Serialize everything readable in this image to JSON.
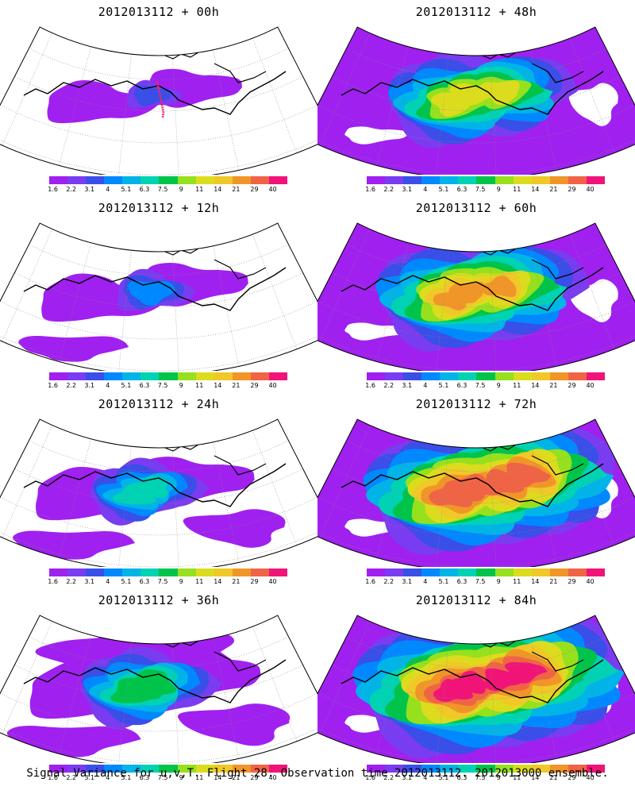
{
  "colorbar": {
    "ticks": [
      "1.6",
      "2.2",
      "3.1",
      "4",
      "5.1",
      "6.3",
      "7.5",
      "9",
      "11",
      "14",
      "21",
      "29",
      "40"
    ],
    "colors": [
      "#a020f0",
      "#7a3cf0",
      "#3a4ee8",
      "#0088ff",
      "#00b4e8",
      "#00d2b4",
      "#00c44a",
      "#96e01e",
      "#dcdc1e",
      "#f0c828",
      "#f09628",
      "#f06446",
      "#f01478"
    ]
  },
  "panels": [
    {
      "title": "2012013112 + 00h",
      "intensity": 0
    },
    {
      "title": "2012013112 + 48h",
      "intensity": 4
    },
    {
      "title": "2012013112 + 12h",
      "intensity": 1
    },
    {
      "title": "2012013112 + 60h",
      "intensity": 5
    },
    {
      "title": "2012013112 + 24h",
      "intensity": 2
    },
    {
      "title": "2012013112 + 72h",
      "intensity": 6
    },
    {
      "title": "2012013112 + 36h",
      "intensity": 3
    },
    {
      "title": "2012013112 + 84h",
      "intensity": 7
    }
  ],
  "footer": "Signal Variance for u,v,T. Flight 28. Observation time 2012013112. 2012013000 ensemble."
}
